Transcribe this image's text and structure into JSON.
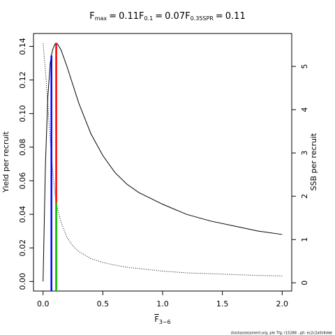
{
  "chart_data": {
    "type": "line",
    "title": [
      {
        "symbol": "F",
        "sub": "max",
        "relation": "=",
        "value": 0.11
      },
      {
        "symbol": "F",
        "sub": "0.1",
        "relation": "=",
        "value": 0.07
      },
      {
        "symbol": "F",
        "sub": "0.35SPR",
        "relation": "=",
        "value": 0.11
      }
    ],
    "xlabel": {
      "text": "F",
      "sub": "3−6"
    },
    "ylabel": "Yield per recruit",
    "y2label": "SSB per recruit",
    "footer": "stockassessment.org, ple 7fg, r15288 , git: ec2c2a0c6dde",
    "x": [
      0,
      0.02,
      0.04,
      0.06,
      0.07,
      0.08,
      0.1,
      0.11,
      0.12,
      0.15,
      0.2,
      0.25,
      0.3,
      0.4,
      0.5,
      0.6,
      0.7,
      0.8,
      1.0,
      1.2,
      1.4,
      1.6,
      1.8,
      2.0
    ],
    "series": [
      {
        "name": "Yield per recruit",
        "color": "#000000",
        "style": "solid",
        "values": [
          0,
          0.07,
          0.11,
          0.13,
          0.1346,
          0.138,
          0.1415,
          0.142,
          0.1415,
          0.138,
          0.128,
          0.117,
          0.106,
          0.088,
          0.075,
          0.065,
          0.058,
          0.053,
          0.046,
          0.04,
          0.036,
          0.033,
          0.03,
          0.028
        ]
      },
      {
        "name": "SSB per recruit",
        "color": "#000000",
        "style": "dotted",
        "axis": "y2",
        "values": [
          5.53,
          4.9,
          4.1,
          3.3,
          2.95,
          2.6,
          2.05,
          1.85,
          1.72,
          1.4,
          1.05,
          0.85,
          0.72,
          0.56,
          0.47,
          0.41,
          0.36,
          0.33,
          0.27,
          0.23,
          0.21,
          0.19,
          0.17,
          0.16
        ]
      }
    ],
    "reference_lines": [
      {
        "x": 0.11,
        "y": 0.142,
        "color": "#ff0000"
      },
      {
        "x": 0.07,
        "y": 0.1346,
        "color": "#0000ff"
      },
      {
        "x": 0.11,
        "y": 1.85,
        "color": "#00cc00",
        "axis": "y2"
      }
    ],
    "xlim": [
      -0.08,
      2.08
    ],
    "ylim": [
      -0.0057,
      0.1477
    ],
    "y2lim": [
      -0.19,
      5.76
    ],
    "xticks": [
      {
        "value": 0,
        "label": "0.0"
      },
      0.5,
      {
        "value": 1,
        "label": "1.0"
      },
      1.5,
      {
        "value": 2,
        "label": "2.0"
      }
    ],
    "yticks": [
      {
        "value": 0,
        "label": "0.00"
      },
      0.02,
      0.04,
      0.06,
      0.08,
      {
        "value": 0.1,
        "label": "0.10"
      },
      0.12,
      0.14
    ],
    "y2ticks": [
      0,
      1,
      2,
      3,
      4,
      5
    ],
    "grid": false
  }
}
